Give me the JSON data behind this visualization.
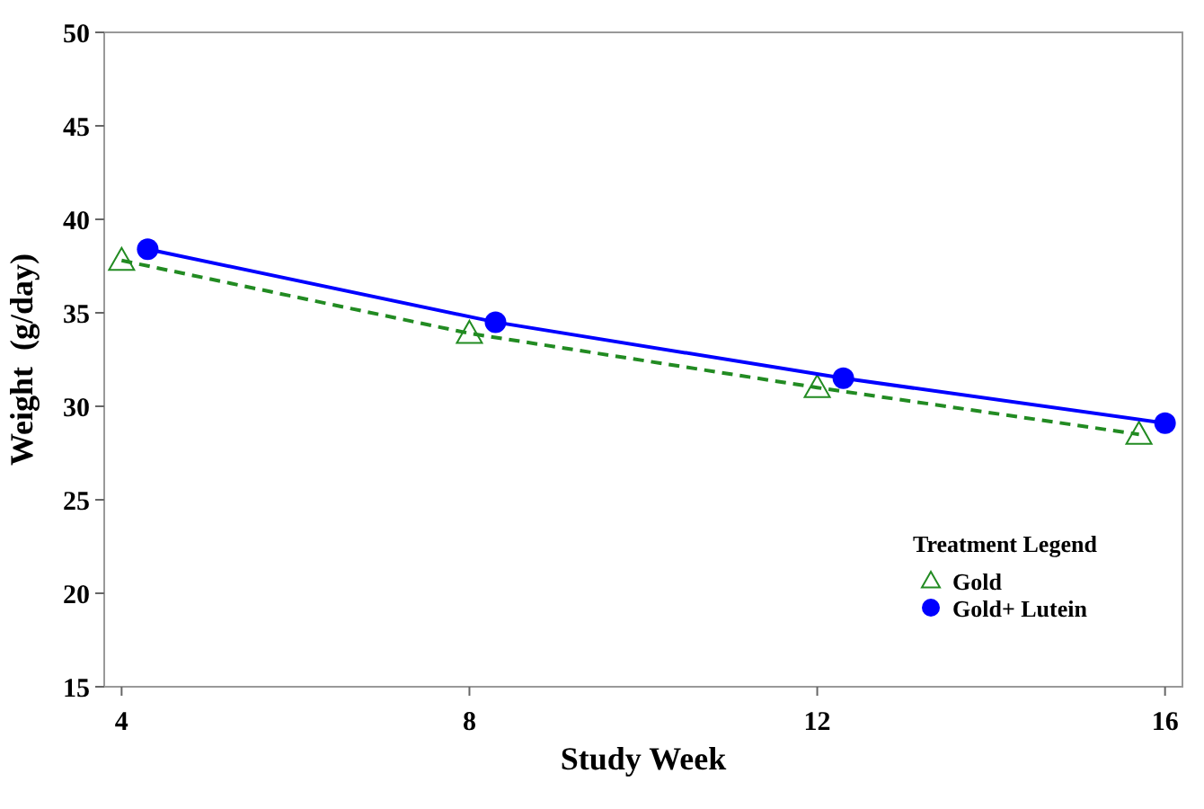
{
  "chart_data": {
    "type": "line",
    "xlabel": "Study Week",
    "ylabel": "Weight  (g/day)",
    "legend_title": "Treatment Legend",
    "legend": "bottom right",
    "xlim": [
      3.8,
      16.2
    ],
    "xticks": [
      4,
      8,
      12,
      16
    ],
    "ylim": [
      15,
      50
    ],
    "yticks": [
      15,
      20,
      25,
      30,
      35,
      40,
      45,
      50
    ],
    "grid": false,
    "series": [
      {
        "name": "Gold",
        "color": "#228b22",
        "x": [
          4.0,
          8.0,
          12.0,
          15.7
        ],
        "values": [
          37.8,
          33.9,
          31.0,
          28.5
        ],
        "marker": "triangle",
        "line_style": "dashed"
      },
      {
        "name": "Gold+ Lutein",
        "color": "#0000ff",
        "x": [
          4.3,
          8.3,
          12.3,
          16.0
        ],
        "values": [
          38.4,
          34.5,
          31.5,
          29.1
        ],
        "marker": "circle",
        "line_style": "solid"
      }
    ]
  }
}
